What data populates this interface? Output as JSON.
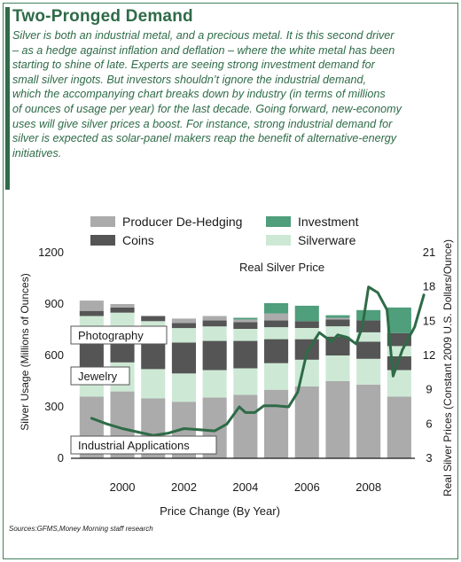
{
  "header": {
    "title": "Two-Pronged Demand",
    "intro_lines": [
      "Silver is both an industrial metal, and a precious metal.  It is this second driver",
      "– as a hedge against inflation and deflation – where the white metal has been",
      "starting to shine of late. Experts are seeing strong investment demand for",
      "small silver ingots. But investors shouldn’t ignore the industrial demand,",
      "which the accompanying chart breaks down by industry (in terms of millions",
      "of ounces of usage per year) for the last decade. Going forward, new-economy",
      "uses will give silver prices a boost. For instance, strong industrial demand for",
      "silver is expected as solar-panel makers reap the benefit of alternative-energy",
      "initiatives."
    ]
  },
  "chart_data": {
    "type": "bar",
    "stacked": true,
    "categories": [
      "1999",
      "2000",
      "2001",
      "2002",
      "2003",
      "2004",
      "2005",
      "2006",
      "2007",
      "2008",
      "2009"
    ],
    "xlabel": "Price Change (By Year)",
    "x_tick_labels": [
      "2000",
      "2002",
      "2004",
      "2006",
      "2008"
    ],
    "ylabel": "Silver Usage (Millions of Ounces)",
    "ylim": [
      0,
      1200
    ],
    "y_ticks": [
      "0",
      "300",
      "600",
      "900",
      "1200"
    ],
    "y2label": "Real Silver Prices (Constant 2009 U.S. Dollars/Ounce)",
    "y2lim": [
      3,
      21
    ],
    "y2_ticks": [
      "3",
      "6",
      "9",
      "12",
      "15",
      "18",
      "21"
    ],
    "series": [
      {
        "name": "Industrial Applications",
        "color": "#ababab",
        "values": [
          360,
          390,
          350,
          330,
          355,
          370,
          400,
          420,
          450,
          430,
          360
        ]
      },
      {
        "name": "Jewelry",
        "color": "#cde9d5",
        "values": [
          165,
          170,
          170,
          165,
          160,
          155,
          155,
          155,
          150,
          150,
          155
        ]
      },
      {
        "name": "Photography",
        "color": "#555555",
        "values": [
          210,
          200,
          190,
          180,
          170,
          160,
          140,
          120,
          110,
          100,
          80
        ]
      },
      {
        "name": "Silverware",
        "color": "#cde9d5",
        "values": [
          95,
          90,
          90,
          85,
          85,
          70,
          70,
          65,
          60,
          55,
          60
        ]
      },
      {
        "name": "Coins",
        "color": "#555555",
        "values": [
          30,
          30,
          30,
          30,
          35,
          40,
          40,
          40,
          40,
          70,
          75
        ]
      },
      {
        "name": "Producer De-Hedging",
        "color": "#ababab",
        "values": [
          60,
          20,
          0,
          25,
          25,
          15,
          40,
          0,
          10,
          0,
          0
        ]
      },
      {
        "name": "Investment",
        "color": "#4f9e7c",
        "values": [
          0,
          0,
          0,
          0,
          0,
          10,
          60,
          90,
          15,
          60,
          150
        ]
      }
    ],
    "line": {
      "name": "Real Silver Price",
      "color": "#2e6b47",
      "x": [
        1999.0,
        1999.5,
        2000.0,
        2000.5,
        2001.0,
        2001.5,
        2002.0,
        2002.5,
        2003.0,
        2003.4,
        2003.8,
        2004.0,
        2004.3,
        2004.6,
        2005.0,
        2005.4,
        2005.7,
        2006.0,
        2006.4,
        2006.8,
        2007.0,
        2007.3,
        2007.6,
        2007.8,
        2008.0,
        2008.3,
        2008.6,
        2008.8,
        2009.1,
        2009.5,
        2009.8
      ],
      "y": [
        6.5,
        6.0,
        5.6,
        5.3,
        5.0,
        5.2,
        5.6,
        5.5,
        5.4,
        6.0,
        7.5,
        7.0,
        7.0,
        7.6,
        7.6,
        7.5,
        8.8,
        12.3,
        14.0,
        13.2,
        13.8,
        13.6,
        13.0,
        14.5,
        18.0,
        17.5,
        16.0,
        10.2,
        12.5,
        14.5,
        17.3
      ]
    },
    "legend": [
      {
        "label": "Producer De-Hedging",
        "color": "#ababab"
      },
      {
        "label": "Investment",
        "color": "#4f9e7c"
      },
      {
        "label": "Coins",
        "color": "#555555"
      },
      {
        "label": "Silverware",
        "color": "#cde9d5"
      }
    ],
    "annotations": [
      "Real Silver Price",
      "Photography",
      "Jewelry",
      "Industrial Applications"
    ],
    "legend_position": "top"
  },
  "footer": {
    "sources": "Sources:GFMS,Money Morning staff research"
  }
}
